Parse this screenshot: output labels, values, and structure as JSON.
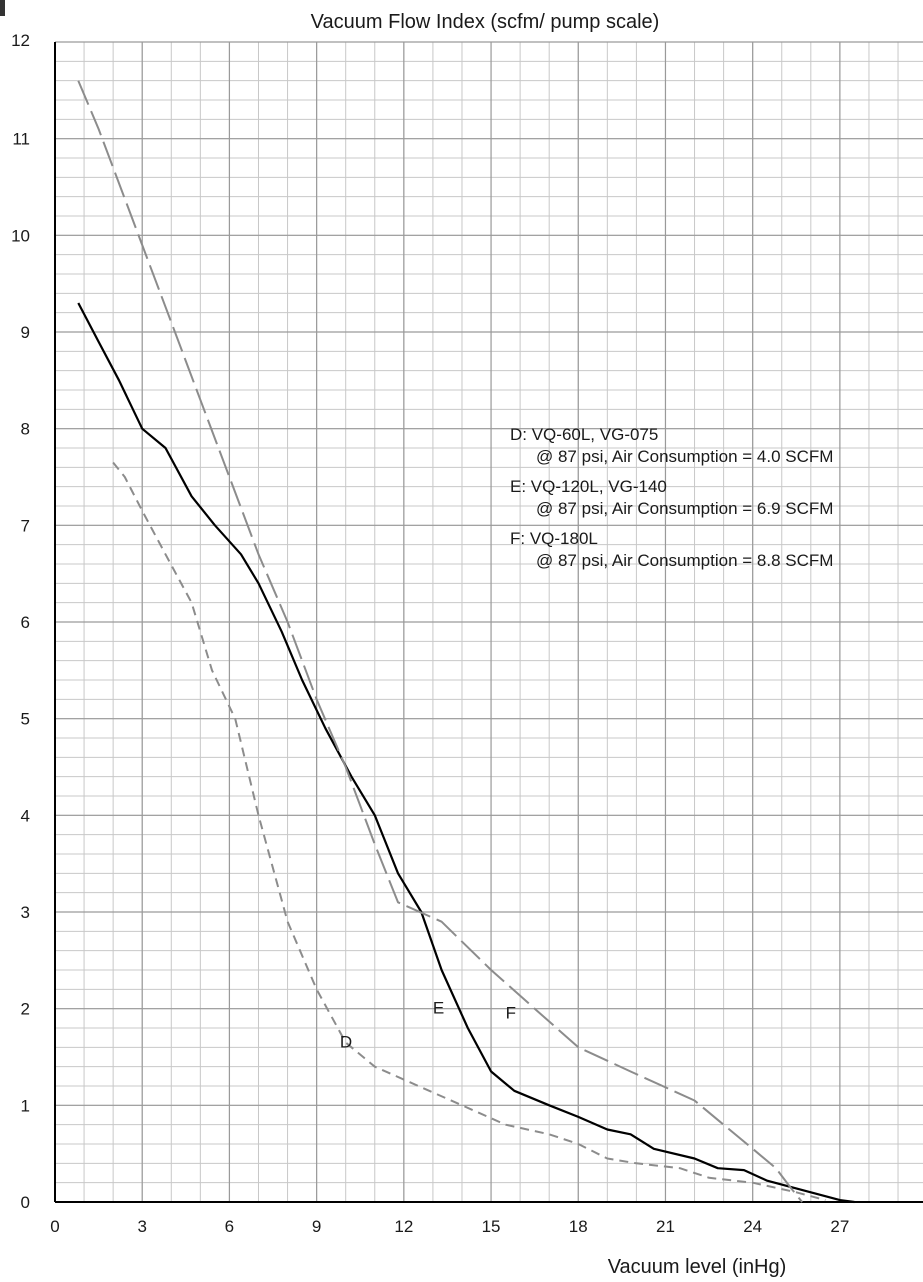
{
  "chart_data": {
    "type": "line",
    "title": "Vacuum Flow Index (scfm/ pump scale)",
    "xlabel": "Vacuum level (inHg)",
    "ylabel": "",
    "xlim": [
      0,
      30
    ],
    "ylim": [
      0,
      12
    ],
    "x_ticks": [
      "0",
      "3",
      "6",
      "9",
      "12",
      "15",
      "18",
      "21",
      "24",
      "27"
    ],
    "y_ticks": [
      "0",
      "1",
      "2",
      "3",
      "4",
      "5",
      "6",
      "7",
      "8",
      "9",
      "10",
      "11",
      "12"
    ],
    "grid": true,
    "minor_grid": {
      "x_step": 1,
      "y_step": 0.2
    },
    "legend_position": "right",
    "legend": [
      {
        "line1": "D: VQ-60L, VG-075",
        "line2": "@ 87 psi, Air Consumption = 4.0 SCFM"
      },
      {
        "line1": "E: VQ-120L, VG-140",
        "line2": "@ 87 psi, Air Consumption = 6.9 SCFM"
      },
      {
        "line1": "F: VQ-180L",
        "line2": "@ 87 psi, Air Consumption = 8.8 SCFM"
      }
    ],
    "series": [
      {
        "name": "D",
        "style": "short-dash",
        "color": "#8c8c8c",
        "label_at": [
          9.8,
          1.6
        ],
        "points": [
          [
            2.0,
            7.65
          ],
          [
            2.4,
            7.5
          ],
          [
            3.0,
            7.15
          ],
          [
            3.8,
            6.7
          ],
          [
            4.7,
            6.2
          ],
          [
            5.4,
            5.5
          ],
          [
            6.2,
            5.0
          ],
          [
            7.0,
            4.0
          ],
          [
            8.0,
            2.9
          ],
          [
            9.0,
            2.2
          ],
          [
            10.0,
            1.65
          ],
          [
            11.0,
            1.4
          ],
          [
            12.5,
            1.2
          ],
          [
            14.0,
            1.0
          ],
          [
            15.5,
            0.8
          ],
          [
            17.0,
            0.7
          ],
          [
            18.0,
            0.6
          ],
          [
            19.0,
            0.45
          ],
          [
            20.0,
            0.4
          ],
          [
            21.5,
            0.35
          ],
          [
            22.5,
            0.25
          ],
          [
            24.0,
            0.2
          ],
          [
            25.5,
            0.1
          ],
          [
            26.5,
            0.02
          ]
        ]
      },
      {
        "name": "E",
        "style": "solid",
        "color": "#000000",
        "label_at": [
          13.0,
          1.95
        ],
        "points": [
          [
            0.8,
            9.3
          ],
          [
            1.5,
            8.9
          ],
          [
            2.2,
            8.5
          ],
          [
            3.0,
            8.0
          ],
          [
            3.8,
            7.8
          ],
          [
            4.7,
            7.3
          ],
          [
            5.5,
            7.0
          ],
          [
            6.4,
            6.7
          ],
          [
            7.0,
            6.4
          ],
          [
            7.8,
            5.9
          ],
          [
            8.5,
            5.4
          ],
          [
            9.3,
            4.9
          ],
          [
            10.2,
            4.4
          ],
          [
            11.0,
            4.0
          ],
          [
            11.8,
            3.4
          ],
          [
            12.6,
            3.0
          ],
          [
            13.3,
            2.4
          ],
          [
            14.2,
            1.8
          ],
          [
            15.0,
            1.35
          ],
          [
            15.8,
            1.15
          ],
          [
            17.0,
            1.0
          ],
          [
            18.0,
            0.88
          ],
          [
            19.0,
            0.75
          ],
          [
            19.8,
            0.7
          ],
          [
            20.6,
            0.55
          ],
          [
            22.0,
            0.45
          ],
          [
            22.8,
            0.35
          ],
          [
            23.7,
            0.33
          ],
          [
            24.5,
            0.22
          ],
          [
            26.0,
            0.1
          ],
          [
            27.0,
            0.02
          ],
          [
            27.5,
            0.0
          ]
        ]
      },
      {
        "name": "F",
        "style": "long-dash",
        "color": "#8c8c8c",
        "label_at": [
          15.5,
          1.9
        ],
        "points": [
          [
            0.8,
            11.6
          ],
          [
            1.5,
            11.1
          ],
          [
            3.0,
            9.9
          ],
          [
            4.0,
            9.1
          ],
          [
            5.0,
            8.3
          ],
          [
            6.0,
            7.5
          ],
          [
            7.0,
            6.7
          ],
          [
            8.0,
            6.0
          ],
          [
            9.0,
            5.2
          ],
          [
            10.0,
            4.5
          ],
          [
            11.0,
            3.7
          ],
          [
            11.8,
            3.1
          ],
          [
            13.3,
            2.9
          ],
          [
            15.0,
            2.4
          ],
          [
            16.5,
            2.0
          ],
          [
            18.0,
            1.6
          ],
          [
            19.8,
            1.35
          ],
          [
            22.0,
            1.05
          ],
          [
            23.0,
            0.8
          ],
          [
            24.0,
            0.55
          ],
          [
            24.8,
            0.35
          ],
          [
            25.3,
            0.15
          ],
          [
            25.7,
            0.0
          ]
        ]
      }
    ]
  }
}
